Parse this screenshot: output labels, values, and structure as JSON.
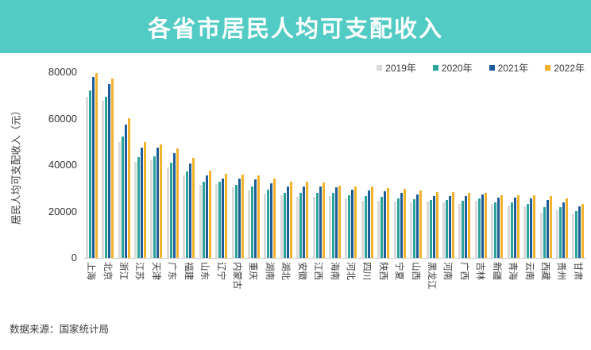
{
  "banner": {
    "title": "各省市居民人均可支配收入",
    "bg_color": "#52cbc4",
    "text_color": "#ffffff"
  },
  "source": {
    "label": "数据来源：国家统计局"
  },
  "chart_data": {
    "type": "bar",
    "title": "各省市居民人均可支配收入",
    "xlabel": "",
    "ylabel": "居民人均可支配收入（元）",
    "ylim": [
      0,
      80000
    ],
    "yticks": [
      0,
      20000,
      40000,
      60000,
      80000
    ],
    "grid": false,
    "legend_position": "top-right",
    "categories": [
      "上海",
      "北京",
      "浙江",
      "江苏",
      "天津",
      "广东",
      "福建",
      "山东",
      "辽宁",
      "内蒙古",
      "重庆",
      "湖南",
      "湖北",
      "安徽",
      "江西",
      "海南",
      "河北",
      "四川",
      "陕西",
      "宁夏",
      "山西",
      "黑龙江",
      "河南",
      "广西",
      "吉林",
      "新疆",
      "青海",
      "云南",
      "西藏",
      "贵州",
      "甘肃"
    ],
    "series": [
      {
        "name": "2019年",
        "color": "#d9d9d9",
        "values": [
          69442,
          67756,
          49899,
          41400,
          42404,
          39014,
          35616,
          31597,
          31820,
          30555,
          28920,
          27680,
          26996,
          26415,
          26262,
          26679,
          25665,
          24703,
          24666,
          24412,
          23828,
          24254,
          23903,
          23328,
          24563,
          23103,
          22618,
          22082,
          19501,
          20397,
          19139
        ]
      },
      {
        "name": "2020年",
        "color": "#2aa39b",
        "values": [
          72232,
          69434,
          52397,
          43390,
          43854,
          41029,
          37202,
          32886,
          32738,
          31497,
          30824,
          29380,
          27881,
          28103,
          28017,
          27904,
          27136,
          26522,
          26226,
          25735,
          25214,
          24902,
          24810,
          24562,
          25751,
          23845,
          24037,
          23295,
          21744,
          21795,
          20335
        ]
      },
      {
        "name": "2021年",
        "color": "#1f5d99",
        "values": [
          78027,
          75002,
          57541,
          47498,
          47449,
          44993,
          40659,
          35705,
          34087,
          34108,
          33803,
          31993,
          30829,
          30904,
          30610,
          30457,
          29383,
          29080,
          28568,
          27904,
          27426,
          26646,
          26811,
          26727,
          27472,
          26075,
          25919,
          25666,
          24950,
          23996,
          22066
        ]
      },
      {
        "name": "2022年",
        "color": "#f2b32c",
        "values": [
          79610,
          77415,
          60302,
          49862,
          48976,
          47065,
          43118,
          37560,
          36089,
          35921,
          35666,
          34036,
          32914,
          32745,
          32419,
          30957,
          30867,
          30679,
          30116,
          29599,
          29178,
          28346,
          28222,
          27981,
          27975,
          27063,
          27000,
          26937,
          26675,
          25508,
          23273
        ]
      }
    ]
  }
}
